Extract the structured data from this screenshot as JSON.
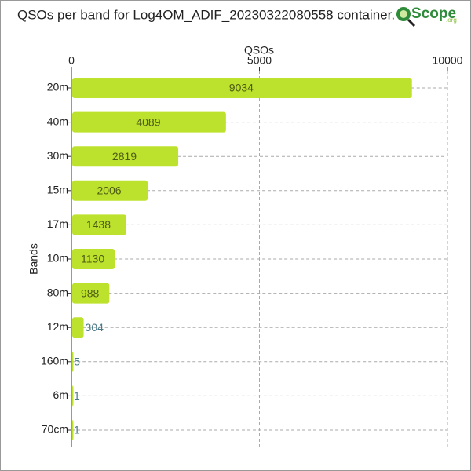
{
  "chart_data": {
    "type": "bar",
    "orientation": "horizontal",
    "title": "QSOs per band for Log4OM_ADIF_20230322080558 container.",
    "logo": "Scope",
    "logo_suffix": ".org",
    "x_label": "QSOs",
    "y_label": "Bands",
    "categories": [
      "20m",
      "40m",
      "30m",
      "15m",
      "17m",
      "10m",
      "80m",
      "12m",
      "160m",
      "6m",
      "70cm"
    ],
    "values": [
      9034,
      4089,
      2819,
      2006,
      1438,
      1130,
      988,
      304,
      5,
      1,
      1
    ],
    "color": "#bde22e",
    "xlim": [
      0,
      10000
    ],
    "xticks": [
      0,
      5000,
      10000
    ],
    "grid": true
  }
}
